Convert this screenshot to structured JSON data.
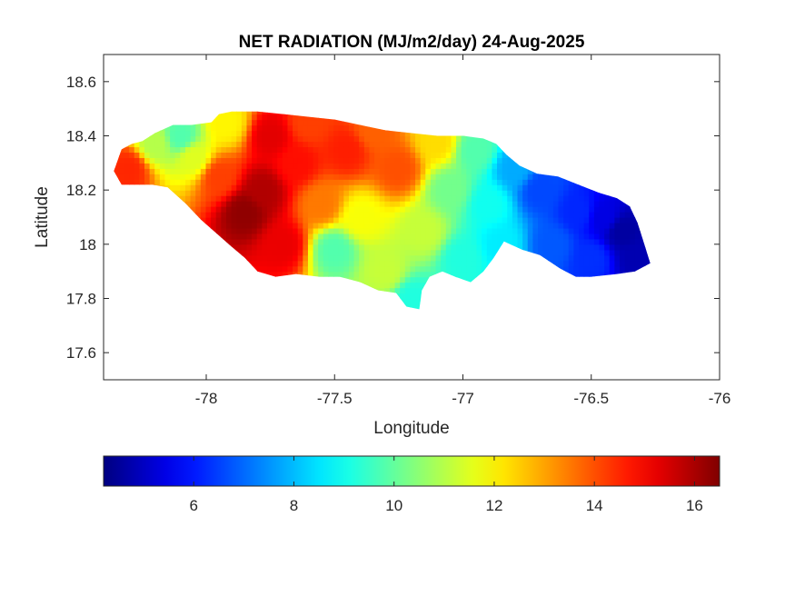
{
  "chart_data": {
    "type": "heatmap",
    "title": "NET RADIATION (MJ/m2/day) 24-Aug-2025",
    "xlabel": "Longitude",
    "ylabel": "Latitude",
    "xlim": [
      -78.4,
      -76
    ],
    "ylim": [
      17.5,
      18.7
    ],
    "x_ticks": [
      -78,
      -77.5,
      -77,
      -76.5,
      -76
    ],
    "x_tick_labels": [
      "-78",
      "-77.5",
      "-77",
      "-76.5",
      "-76"
    ],
    "y_ticks": [
      17.6,
      17.8,
      18,
      18.2,
      18.4,
      18.6
    ],
    "y_tick_labels": [
      "17.6",
      "17.8",
      "18",
      "18.2",
      "18.4",
      "18.6"
    ],
    "grid": false,
    "colormap": "jet",
    "colorbar": {
      "orientation": "horizontal",
      "location": "bottom",
      "range": [
        4.2,
        16.5
      ],
      "ticks": [
        6,
        8,
        10,
        12,
        14,
        16
      ],
      "tick_labels": [
        "6",
        "8",
        "10",
        "12",
        "14",
        "16"
      ]
    },
    "outline_lonlat": [
      [
        -78.36,
        18.27
      ],
      [
        -78.33,
        18.35
      ],
      [
        -78.29,
        18.37
      ],
      [
        -78.25,
        18.38
      ],
      [
        -78.2,
        18.41
      ],
      [
        -78.13,
        18.44
      ],
      [
        -78.06,
        18.44
      ],
      [
        -77.98,
        18.45
      ],
      [
        -77.95,
        18.48
      ],
      [
        -77.9,
        18.49
      ],
      [
        -77.8,
        18.49
      ],
      [
        -77.7,
        18.48
      ],
      [
        -77.6,
        18.47
      ],
      [
        -77.5,
        18.46
      ],
      [
        -77.4,
        18.44
      ],
      [
        -77.3,
        18.42
      ],
      [
        -77.2,
        18.41
      ],
      [
        -77.1,
        18.4
      ],
      [
        -77.0,
        18.4
      ],
      [
        -76.92,
        18.39
      ],
      [
        -76.87,
        18.37
      ],
      [
        -76.83,
        18.33
      ],
      [
        -76.78,
        18.29
      ],
      [
        -76.71,
        18.26
      ],
      [
        -76.63,
        18.25
      ],
      [
        -76.55,
        18.22
      ],
      [
        -76.47,
        18.19
      ],
      [
        -76.4,
        18.17
      ],
      [
        -76.35,
        18.14
      ],
      [
        -76.32,
        18.08
      ],
      [
        -76.3,
        18.02
      ],
      [
        -76.27,
        17.93
      ],
      [
        -76.33,
        17.9
      ],
      [
        -76.4,
        17.89
      ],
      [
        -76.5,
        17.88
      ],
      [
        -76.56,
        17.88
      ],
      [
        -76.62,
        17.91
      ],
      [
        -76.7,
        17.96
      ],
      [
        -76.77,
        17.98
      ],
      [
        -76.84,
        18.01
      ],
      [
        -76.88,
        17.95
      ],
      [
        -76.92,
        17.9
      ],
      [
        -76.97,
        17.86
      ],
      [
        -77.03,
        17.88
      ],
      [
        -77.08,
        17.9
      ],
      [
        -77.13,
        17.88
      ],
      [
        -77.16,
        17.83
      ],
      [
        -77.17,
        17.76
      ],
      [
        -77.22,
        17.77
      ],
      [
        -77.26,
        17.82
      ],
      [
        -77.33,
        17.83
      ],
      [
        -77.4,
        17.86
      ],
      [
        -77.48,
        17.88
      ],
      [
        -77.56,
        17.88
      ],
      [
        -77.65,
        17.89
      ],
      [
        -77.73,
        17.88
      ],
      [
        -77.8,
        17.9
      ],
      [
        -77.85,
        17.95
      ],
      [
        -77.9,
        17.99
      ],
      [
        -77.96,
        18.04
      ],
      [
        -78.02,
        18.09
      ],
      [
        -78.08,
        18.15
      ],
      [
        -78.15,
        18.21
      ],
      [
        -78.21,
        18.22
      ],
      [
        -78.28,
        18.22
      ],
      [
        -78.33,
        18.22
      ]
    ],
    "field_samples": [
      {
        "lon": -78.3,
        "lat": 18.28,
        "value": 14.5
      },
      {
        "lon": -78.2,
        "lat": 18.37,
        "value": 11.0
      },
      {
        "lon": -78.1,
        "lat": 18.4,
        "value": 9.8
      },
      {
        "lon": -78.05,
        "lat": 18.32,
        "value": 11.5
      },
      {
        "lon": -77.95,
        "lat": 18.25,
        "value": 14.2
      },
      {
        "lon": -77.92,
        "lat": 18.45,
        "value": 12.0
      },
      {
        "lon": -77.85,
        "lat": 18.12,
        "value": 16.3
      },
      {
        "lon": -77.75,
        "lat": 18.4,
        "value": 15.3
      },
      {
        "lon": -77.78,
        "lat": 18.2,
        "value": 15.9
      },
      {
        "lon": -77.7,
        "lat": 18.0,
        "value": 15.2
      },
      {
        "lon": -77.65,
        "lat": 18.3,
        "value": 14.8
      },
      {
        "lon": -77.6,
        "lat": 18.45,
        "value": 14.2
      },
      {
        "lon": -77.55,
        "lat": 18.15,
        "value": 13.5
      },
      {
        "lon": -77.5,
        "lat": 17.98,
        "value": 9.8
      },
      {
        "lon": -77.45,
        "lat": 18.35,
        "value": 14.6
      },
      {
        "lon": -77.4,
        "lat": 18.1,
        "value": 11.8
      },
      {
        "lon": -77.35,
        "lat": 18.42,
        "value": 13.8
      },
      {
        "lon": -77.3,
        "lat": 17.9,
        "value": 11.2
      },
      {
        "lon": -77.25,
        "lat": 18.28,
        "value": 14.0
      },
      {
        "lon": -77.2,
        "lat": 17.8,
        "value": 9.2
      },
      {
        "lon": -77.15,
        "lat": 18.05,
        "value": 11.2
      },
      {
        "lon": -77.1,
        "lat": 18.38,
        "value": 12.3
      },
      {
        "lon": -77.05,
        "lat": 18.2,
        "value": 10.2
      },
      {
        "lon": -77.0,
        "lat": 17.95,
        "value": 9.2
      },
      {
        "lon": -76.95,
        "lat": 18.35,
        "value": 9.8
      },
      {
        "lon": -76.9,
        "lat": 18.15,
        "value": 9.0
      },
      {
        "lon": -76.85,
        "lat": 18.0,
        "value": 8.6
      },
      {
        "lon": -76.8,
        "lat": 18.28,
        "value": 7.8
      },
      {
        "lon": -76.7,
        "lat": 18.2,
        "value": 6.6
      },
      {
        "lon": -76.65,
        "lat": 18.0,
        "value": 6.8
      },
      {
        "lon": -76.55,
        "lat": 18.12,
        "value": 6.2
      },
      {
        "lon": -76.5,
        "lat": 17.95,
        "value": 6.3
      },
      {
        "lon": -76.45,
        "lat": 18.1,
        "value": 5.4
      },
      {
        "lon": -76.38,
        "lat": 18.05,
        "value": 4.6
      },
      {
        "lon": -76.32,
        "lat": 17.95,
        "value": 4.8
      }
    ]
  },
  "style": {
    "axes_color": "#262626",
    "background": "#ffffff",
    "jet_stops": [
      "#00008f",
      "#0000ff",
      "#00ffff",
      "#ffff00",
      "#ff0000",
      "#800000"
    ]
  }
}
